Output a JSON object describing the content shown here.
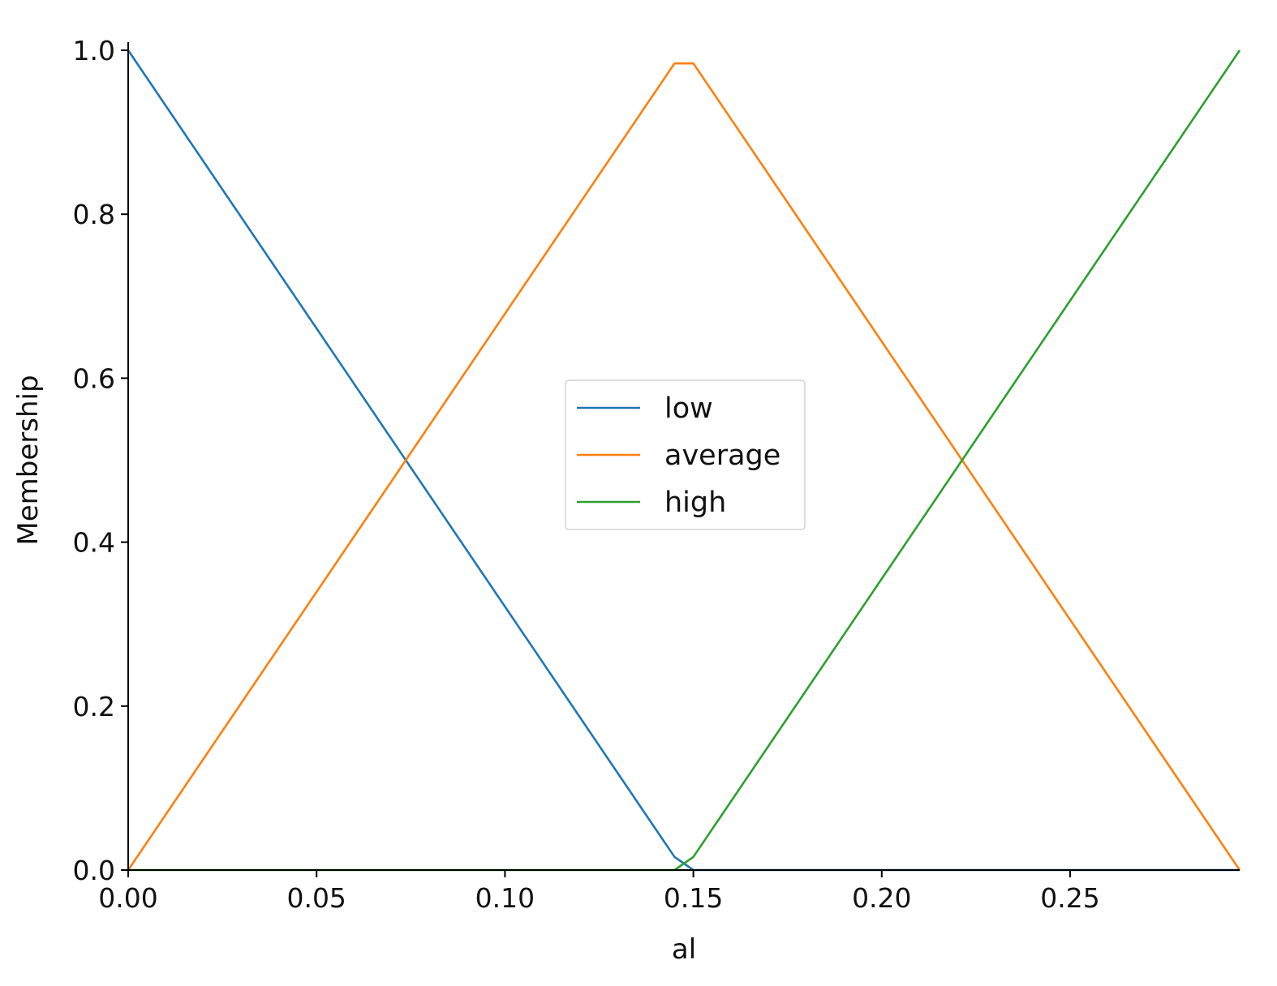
{
  "chart_data": {
    "type": "line",
    "title": "",
    "xlabel": "al",
    "ylabel": "Membership",
    "xlim": [
      0,
      0.295
    ],
    "ylim": [
      0,
      1.0
    ],
    "xticks": [
      {
        "value": 0.0,
        "label": "0.00"
      },
      {
        "value": 0.05,
        "label": "0.05"
      },
      {
        "value": 0.1,
        "label": "0.10"
      },
      {
        "value": 0.15,
        "label": "0.15"
      },
      {
        "value": 0.2,
        "label": "0.20"
      },
      {
        "value": 0.25,
        "label": "0.25"
      }
    ],
    "yticks": [
      {
        "value": 0.0,
        "label": "0.0"
      },
      {
        "value": 0.2,
        "label": "0.2"
      },
      {
        "value": 0.4,
        "label": "0.4"
      },
      {
        "value": 0.6,
        "label": "0.6"
      },
      {
        "value": 0.8,
        "label": "0.8"
      },
      {
        "value": 1.0,
        "label": "1.0"
      }
    ],
    "grid": false,
    "legend": {
      "position": "center"
    },
    "series": [
      {
        "name": "low",
        "color": "#1f77b4",
        "x": [
          0.0,
          0.145,
          0.15,
          0.295
        ],
        "y": [
          1.0,
          0.016,
          0.0,
          0.0
        ]
      },
      {
        "name": "average",
        "color": "#ff7f0e",
        "x": [
          0.0,
          0.145,
          0.15,
          0.295
        ],
        "y": [
          0.0,
          0.984,
          0.984,
          0.0
        ]
      },
      {
        "name": "high",
        "color": "#2ca02c",
        "x": [
          0.0,
          0.145,
          0.15,
          0.295
        ],
        "y": [
          0.0,
          0.0,
          0.016,
          1.0
        ]
      }
    ]
  }
}
